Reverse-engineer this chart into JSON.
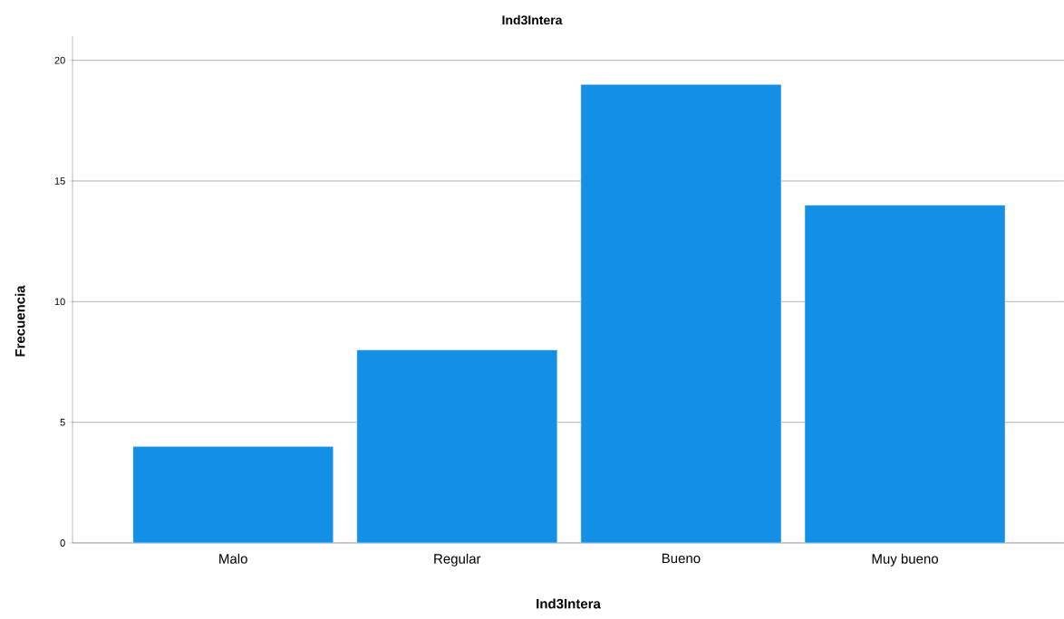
{
  "chart_data": {
    "type": "bar",
    "title": "Ind3Intera",
    "xlabel": "Ind3Intera",
    "ylabel": "Frecuencia",
    "categories": [
      "Malo",
      "Regular",
      "Bueno",
      "Muy bueno"
    ],
    "values": [
      4,
      8,
      19,
      14
    ],
    "color": "#1390e6",
    "ylim": [
      0,
      21
    ],
    "yticks": [
      0,
      5,
      10,
      15,
      20
    ],
    "grid": "y"
  }
}
